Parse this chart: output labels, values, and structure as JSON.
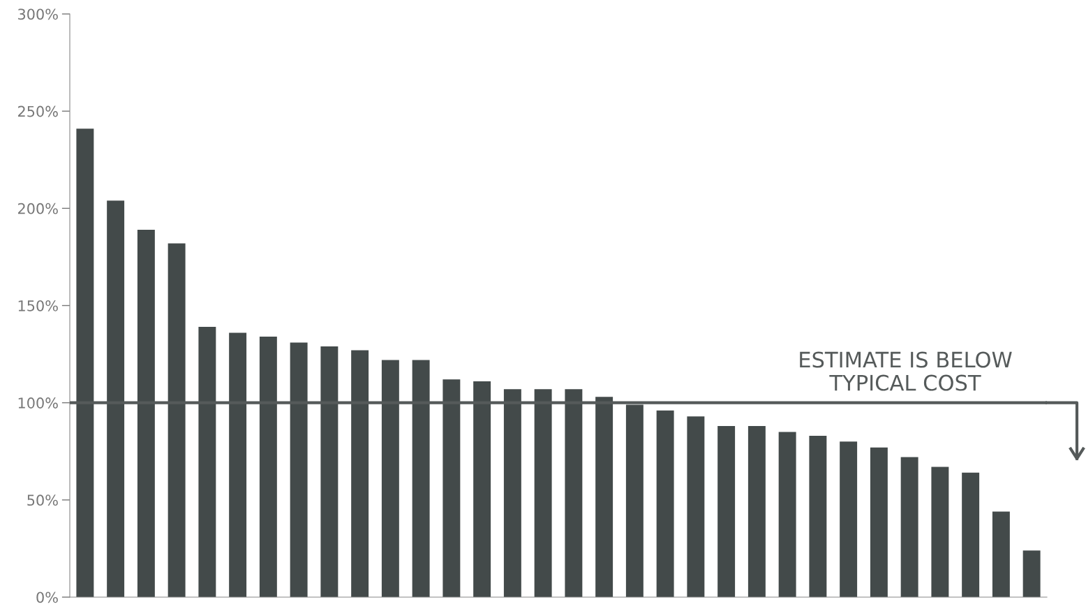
{
  "chart_data": {
    "type": "bar",
    "categories": [
      null,
      null,
      null,
      null,
      null,
      null,
      null,
      null,
      null,
      null,
      null,
      null,
      null,
      null,
      null,
      null,
      null,
      null,
      null,
      null,
      null,
      null,
      null,
      null,
      null,
      null,
      null,
      null,
      null,
      null,
      null,
      null
    ],
    "values": [
      241,
      204,
      189,
      182,
      139,
      136,
      134,
      131,
      129,
      127,
      122,
      122,
      112,
      111,
      107,
      107,
      107,
      103,
      99,
      96,
      93,
      88,
      88,
      85,
      83,
      80,
      77,
      72,
      67,
      64,
      44,
      24
    ],
    "color": "#434a4a",
    "ylim": [
      0,
      300
    ],
    "yticks": [
      {
        "value": 0,
        "label": "0%"
      },
      {
        "value": 50,
        "label": "50%"
      },
      {
        "value": 100,
        "label": "100%"
      },
      {
        "value": 150,
        "label": "150%"
      },
      {
        "value": 200,
        "label": "200%"
      },
      {
        "value": 250,
        "label": "250%"
      },
      {
        "value": 300,
        "label": "300%"
      }
    ],
    "ref_lines": [
      {
        "axis": "y",
        "value": 100,
        "label": "ESTIMATE IS BELOW\nTYPICAL COST",
        "color": "#555a5a"
      }
    ],
    "grid": false,
    "legend": false
  }
}
